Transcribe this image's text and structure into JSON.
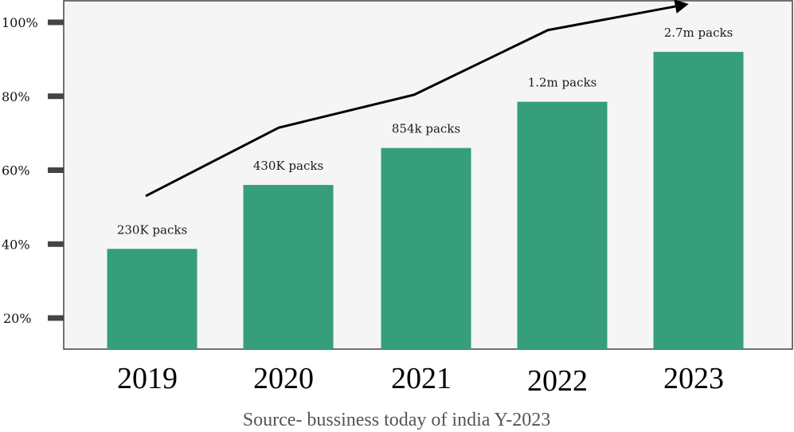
{
  "chart_data": {
    "type": "bar",
    "title": "",
    "xlabel": "",
    "ylabel": "",
    "categories": [
      "2019",
      "2020",
      "2021",
      "2022",
      "2023"
    ],
    "values": [
      38.7,
      56,
      66,
      78.5,
      92
    ],
    "data_labels": [
      "230K packs",
      "430K packs",
      "854k packs",
      "1.2m packs",
      "2.7m packs"
    ],
    "yticks": [
      20,
      40,
      60,
      80,
      100
    ],
    "ytick_labels": [
      "20%",
      "40%",
      "60%",
      "80%",
      "100%"
    ],
    "ylim": [
      11.5,
      104
    ],
    "grid": false,
    "bar_color": "#369e7a",
    "plot_background": "#f5f5f5",
    "trend_line": {
      "description": "upward trend arrow",
      "points": [
        {
          "x": "2019",
          "y": 53
        },
        {
          "x": "2020",
          "y": 71.5
        },
        {
          "x": "2021",
          "y": 80.4
        },
        {
          "x": "2022",
          "y": 97.9
        },
        {
          "x": "2023+",
          "y": 104.3
        }
      ],
      "color": "#000000"
    },
    "source": "Source- bussiness today of india Y-2023"
  }
}
